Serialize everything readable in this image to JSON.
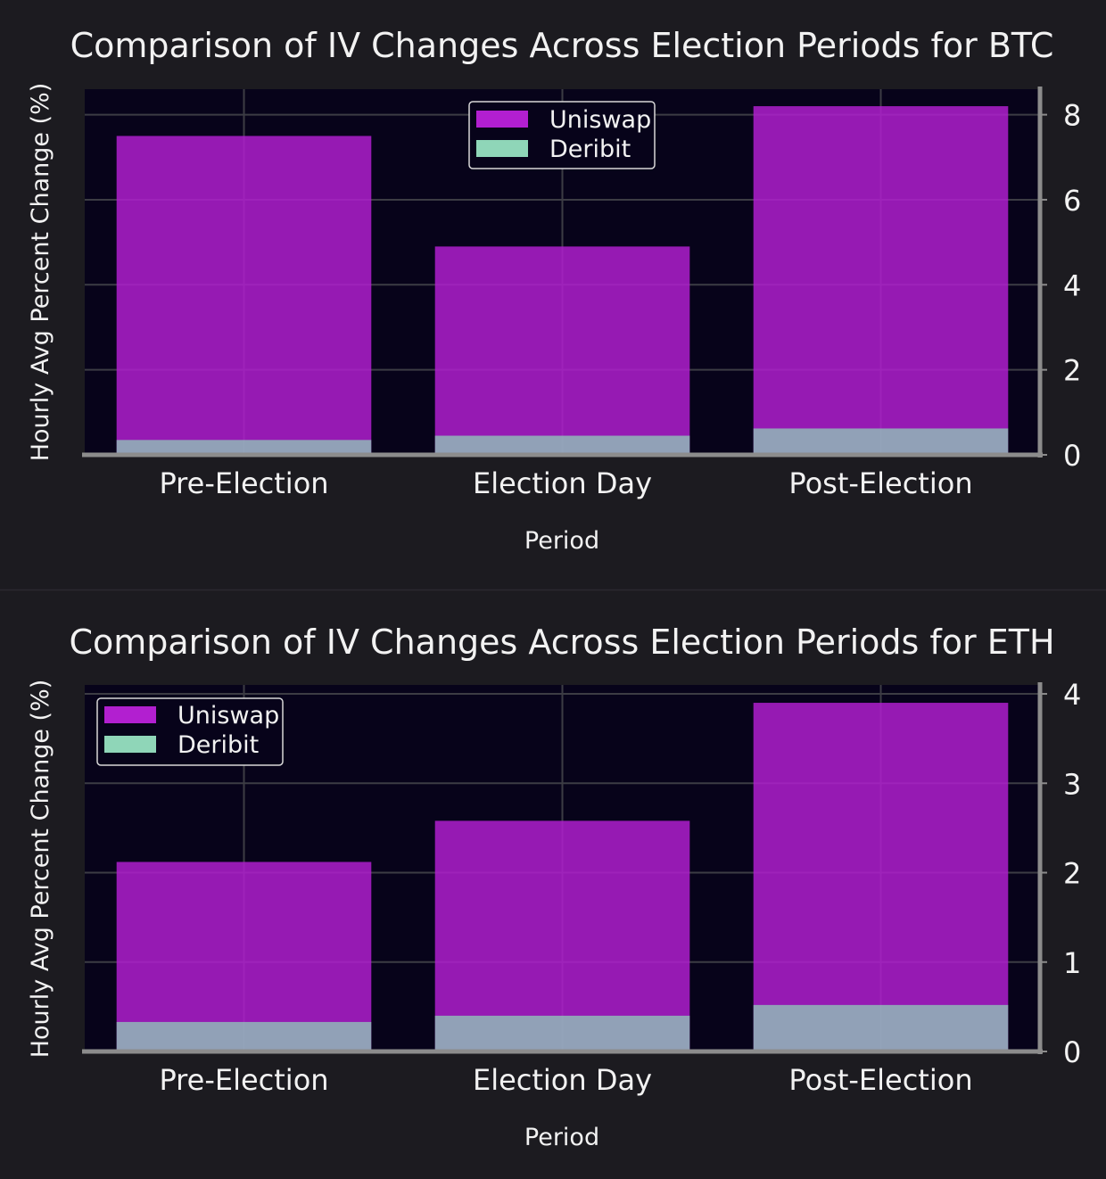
{
  "chart_data": [
    {
      "type": "bar",
      "title": "Comparison of IV Changes Across Election Periods for BTC",
      "xlabel": "Period",
      "ylabel": "Hourly Avg Percent Change (%)",
      "categories": [
        "Pre-Election",
        "Election Day",
        "Post-Election"
      ],
      "series": [
        {
          "name": "Uniswap",
          "values": [
            7.5,
            4.9,
            8.2
          ],
          "color": "#b21fd0"
        },
        {
          "name": "Deribit",
          "values": [
            0.35,
            0.45,
            0.62
          ],
          "color": "#8fd6b8"
        }
      ],
      "ylim": [
        0,
        8.6
      ],
      "yticks": [
        0,
        2,
        4,
        6,
        8
      ],
      "y_axis_side": "right",
      "grid": true,
      "legend_position": "top-center"
    },
    {
      "type": "bar",
      "title": "Comparison of IV Changes Across Election Periods for ETH",
      "xlabel": "Period",
      "ylabel": "Hourly Avg Percent Change (%)",
      "categories": [
        "Pre-Election",
        "Election Day",
        "Post-Election"
      ],
      "series": [
        {
          "name": "Uniswap",
          "values": [
            2.12,
            2.58,
            3.9
          ],
          "color": "#b21fd0"
        },
        {
          "name": "Deribit",
          "values": [
            0.33,
            0.4,
            0.52
          ],
          "color": "#8fd6b8"
        }
      ],
      "ylim": [
        0,
        4.1
      ],
      "yticks": [
        0,
        1,
        2,
        3,
        4
      ],
      "y_axis_side": "right",
      "grid": true,
      "legend_position": "top-left"
    }
  ]
}
